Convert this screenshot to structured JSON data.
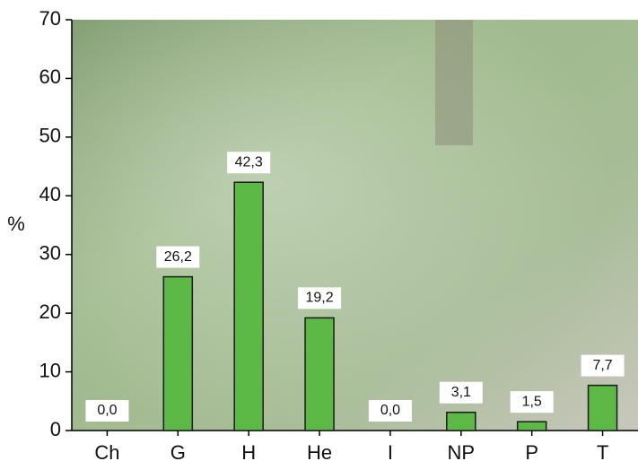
{
  "chart_data": {
    "type": "bar",
    "y_label": "%",
    "categories": [
      "Ch",
      "G",
      "H",
      "He",
      "I",
      "NP",
      "P",
      "T"
    ],
    "values": [
      0.0,
      26.2,
      42.3,
      19.2,
      0.0,
      3.1,
      1.5,
      7.7
    ],
    "value_labels": [
      "0,0",
      "26,2",
      "42,3",
      "19,2",
      "0,0",
      "3,1",
      "1,5",
      "7,7"
    ],
    "color": "#5cb946",
    "ylim": [
      0,
      70
    ],
    "yticks": [
      0,
      10,
      20,
      30,
      40,
      50,
      60,
      70
    ]
  }
}
